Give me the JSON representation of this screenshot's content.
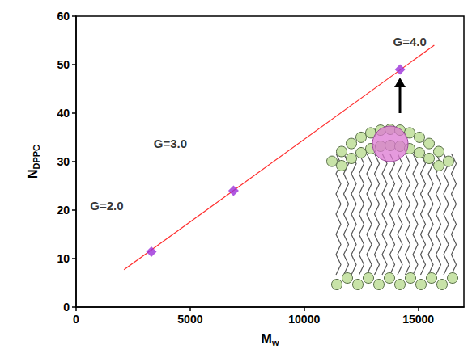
{
  "chart_data": {
    "type": "scatter",
    "x_label": {
      "text": "M",
      "subscript": "w"
    },
    "y_label": {
      "text": "N",
      "subscript": "DPPC"
    },
    "series": [
      {
        "type": "scatter",
        "marker": "diamond",
        "color": "#9b30d9",
        "x": [
          3300,
          6900,
          14200
        ],
        "values": [
          11.4,
          24,
          49
        ],
        "point_labels": [
          "G=2.0",
          "G=3.0",
          "G=4.0"
        ]
      },
      {
        "type": "line",
        "line_style": "solid",
        "color": "#ff2a2a",
        "x": [
          2100,
          15700
        ],
        "values": [
          7.7,
          54
        ]
      }
    ],
    "xlim": [
      0,
      17000
    ],
    "xticks": [
      0,
      5000,
      10000,
      15000
    ],
    "ylim": [
      0,
      60
    ],
    "yticks": [
      0,
      10,
      20,
      30,
      40,
      50,
      60
    ],
    "grid": false
  }
}
